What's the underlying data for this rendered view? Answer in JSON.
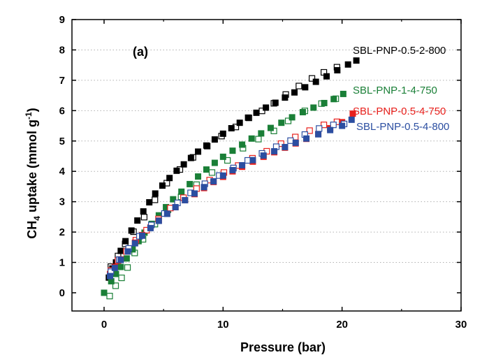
{
  "chart_data": {
    "type": "scatter",
    "title": "",
    "panel_label": "(a)",
    "xlabel": "Pressure (bar)",
    "ylabel_main": "CH",
    "ylabel_sub": "4",
    "ylabel_mid": " uptake (mmol g",
    "ylabel_sup": "-1",
    "ylabel_end": ")",
    "xlim": [
      -2.7,
      30
    ],
    "ylim": [
      -0.6,
      9
    ],
    "xticks": [
      0,
      10,
      20,
      30
    ],
    "yticks": [
      0,
      1,
      2,
      3,
      4,
      5,
      6,
      7,
      8,
      9
    ],
    "grid": "horizontal dotted",
    "series": [
      {
        "name": "SBL-PNP-0.5-2-800",
        "color": "#000000",
        "label_color": "#000000",
        "adsorption": [
          [
            0.4,
            0.5
          ],
          [
            0.7,
            0.8
          ],
          [
            1.0,
            1.0
          ],
          [
            1.4,
            1.38
          ],
          [
            1.8,
            1.7
          ],
          [
            2.3,
            2.05
          ],
          [
            2.8,
            2.38
          ],
          [
            3.3,
            2.68
          ],
          [
            3.8,
            2.98
          ],
          [
            4.3,
            3.27
          ],
          [
            4.9,
            3.53
          ],
          [
            5.5,
            3.78
          ],
          [
            6.1,
            4.02
          ],
          [
            6.7,
            4.23
          ],
          [
            7.3,
            4.44
          ],
          [
            7.9,
            4.65
          ],
          [
            8.6,
            4.85
          ],
          [
            9.3,
            5.05
          ],
          [
            10.0,
            5.24
          ],
          [
            10.7,
            5.42
          ],
          [
            11.4,
            5.6
          ],
          [
            12.1,
            5.77
          ],
          [
            12.8,
            5.93
          ],
          [
            13.6,
            6.1
          ],
          [
            14.4,
            6.26
          ],
          [
            15.2,
            6.43
          ],
          [
            16.0,
            6.6
          ],
          [
            16.9,
            6.77
          ],
          [
            17.8,
            6.95
          ],
          [
            18.7,
            7.13
          ],
          [
            19.6,
            7.33
          ],
          [
            20.5,
            7.52
          ],
          [
            21.2,
            7.65
          ]
        ],
        "desorption": [
          [
            0.6,
            0.85
          ],
          [
            1.2,
            1.2
          ],
          [
            1.8,
            1.6
          ],
          [
            2.5,
            2.0
          ],
          [
            3.4,
            2.48
          ],
          [
            4.3,
            3.05
          ],
          [
            5.3,
            3.6
          ],
          [
            6.4,
            4.05
          ],
          [
            7.5,
            4.45
          ],
          [
            8.7,
            4.82
          ],
          [
            9.9,
            5.15
          ],
          [
            11.1,
            5.45
          ],
          [
            12.2,
            5.75
          ],
          [
            13.3,
            5.98
          ],
          [
            14.3,
            6.23
          ],
          [
            15.3,
            6.52
          ],
          [
            16.4,
            6.8
          ],
          [
            17.5,
            7.05
          ],
          [
            18.5,
            7.25
          ],
          [
            19.6,
            7.42
          ]
        ]
      },
      {
        "name": "SBL-PNP-1-4-750",
        "color": "#1a7f37",
        "label_color": "#1a7f37",
        "adsorption": [
          [
            0.0,
            0.0
          ],
          [
            0.6,
            0.38
          ],
          [
            1.0,
            0.62
          ],
          [
            1.4,
            0.85
          ],
          [
            1.9,
            1.13
          ],
          [
            2.4,
            1.43
          ],
          [
            2.9,
            1.7
          ],
          [
            3.4,
            1.98
          ],
          [
            4.0,
            2.27
          ],
          [
            4.6,
            2.55
          ],
          [
            5.2,
            2.82
          ],
          [
            5.8,
            3.08
          ],
          [
            6.5,
            3.33
          ],
          [
            7.2,
            3.58
          ],
          [
            7.9,
            3.83
          ],
          [
            8.6,
            4.06
          ],
          [
            9.3,
            4.28
          ],
          [
            10.0,
            4.48
          ],
          [
            10.8,
            4.68
          ],
          [
            11.6,
            4.88
          ],
          [
            12.4,
            5.08
          ],
          [
            13.2,
            5.25
          ],
          [
            14.0,
            5.43
          ],
          [
            14.9,
            5.6
          ],
          [
            15.8,
            5.78
          ],
          [
            16.7,
            5.95
          ],
          [
            17.6,
            6.1
          ],
          [
            18.5,
            6.25
          ],
          [
            19.3,
            6.38
          ],
          [
            20.1,
            6.55
          ]
        ],
        "desorption": [
          [
            0.5,
            -0.12
          ],
          [
            1.0,
            0.22
          ],
          [
            1.5,
            0.48
          ],
          [
            2.0,
            0.82
          ],
          [
            2.6,
            1.3
          ],
          [
            3.3,
            1.75
          ],
          [
            4.3,
            2.25
          ],
          [
            5.4,
            2.72
          ],
          [
            6.5,
            3.15
          ],
          [
            7.8,
            3.55
          ],
          [
            9.1,
            3.95
          ],
          [
            10.4,
            4.35
          ],
          [
            11.7,
            4.75
          ],
          [
            13.0,
            5.05
          ],
          [
            14.3,
            5.32
          ],
          [
            15.5,
            5.65
          ],
          [
            16.9,
            5.98
          ],
          [
            18.3,
            6.22
          ],
          [
            19.5,
            6.38
          ]
        ]
      },
      {
        "name": "SBL-PNP-0.5-4-750",
        "color": "#e8211d",
        "label_color": "#e8211d",
        "adsorption": [
          [
            0.5,
            0.62
          ],
          [
            0.9,
            0.85
          ],
          [
            1.4,
            1.1
          ],
          [
            2.0,
            1.38
          ],
          [
            2.6,
            1.65
          ],
          [
            3.2,
            1.9
          ],
          [
            3.9,
            2.15
          ],
          [
            4.6,
            2.38
          ],
          [
            5.3,
            2.6
          ],
          [
            6.0,
            2.82
          ],
          [
            6.8,
            3.05
          ],
          [
            7.6,
            3.25
          ],
          [
            8.4,
            3.45
          ],
          [
            9.2,
            3.65
          ],
          [
            10.0,
            3.82
          ],
          [
            10.8,
            4.0
          ],
          [
            11.6,
            4.15
          ],
          [
            12.5,
            4.32
          ],
          [
            13.4,
            4.48
          ],
          [
            14.3,
            4.63
          ],
          [
            15.2,
            4.78
          ],
          [
            16.1,
            4.92
          ],
          [
            17.0,
            5.07
          ],
          [
            18.0,
            5.23
          ],
          [
            19.0,
            5.42
          ],
          [
            20.0,
            5.62
          ],
          [
            20.9,
            5.9
          ]
        ],
        "desorption": [
          [
            0.6,
            0.72
          ],
          [
            1.2,
            1.05
          ],
          [
            1.9,
            1.35
          ],
          [
            2.7,
            1.72
          ],
          [
            3.6,
            2.05
          ],
          [
            4.6,
            2.42
          ],
          [
            5.6,
            2.78
          ],
          [
            6.7,
            3.12
          ],
          [
            7.8,
            3.42
          ],
          [
            8.9,
            3.7
          ],
          [
            10.1,
            3.95
          ],
          [
            11.3,
            4.18
          ],
          [
            12.5,
            4.42
          ],
          [
            13.7,
            4.65
          ],
          [
            14.9,
            4.9
          ],
          [
            16.1,
            5.12
          ],
          [
            17.3,
            5.33
          ],
          [
            18.5,
            5.52
          ],
          [
            19.6,
            5.62
          ]
        ]
      },
      {
        "name": "SBL-PNP-0.5-4-800",
        "color": "#2b4ea1",
        "label_color": "#2b4ea1",
        "adsorption": [
          [
            0.5,
            0.55
          ],
          [
            0.9,
            0.82
          ],
          [
            1.4,
            1.08
          ],
          [
            2.0,
            1.36
          ],
          [
            2.6,
            1.63
          ],
          [
            3.2,
            1.88
          ],
          [
            3.9,
            2.13
          ],
          [
            4.6,
            2.37
          ],
          [
            5.3,
            2.6
          ],
          [
            6.0,
            2.82
          ],
          [
            6.8,
            3.05
          ],
          [
            7.6,
            3.27
          ],
          [
            8.4,
            3.48
          ],
          [
            9.2,
            3.67
          ],
          [
            10.0,
            3.86
          ],
          [
            10.8,
            4.04
          ],
          [
            11.6,
            4.2
          ],
          [
            12.5,
            4.37
          ],
          [
            13.4,
            4.52
          ],
          [
            14.3,
            4.66
          ],
          [
            15.2,
            4.8
          ],
          [
            16.1,
            4.94
          ],
          [
            17.0,
            5.08
          ],
          [
            18.0,
            5.22
          ],
          [
            19.0,
            5.36
          ],
          [
            20.0,
            5.5
          ],
          [
            20.8,
            5.7
          ]
        ],
        "desorption": [
          [
            0.6,
            0.68
          ],
          [
            1.3,
            1.08
          ],
          [
            2.1,
            1.45
          ],
          [
            3.0,
            1.85
          ],
          [
            4.0,
            2.22
          ],
          [
            5.1,
            2.6
          ],
          [
            6.2,
            2.95
          ],
          [
            7.3,
            3.28
          ],
          [
            8.5,
            3.58
          ],
          [
            9.7,
            3.85
          ],
          [
            10.9,
            4.1
          ],
          [
            12.1,
            4.35
          ],
          [
            13.3,
            4.58
          ],
          [
            14.5,
            4.8
          ],
          [
            15.7,
            5.0
          ],
          [
            16.9,
            5.2
          ],
          [
            18.1,
            5.4
          ],
          [
            19.3,
            5.52
          ],
          [
            20.2,
            5.55
          ]
        ]
      }
    ],
    "series_label_positions": "right end of each series"
  }
}
